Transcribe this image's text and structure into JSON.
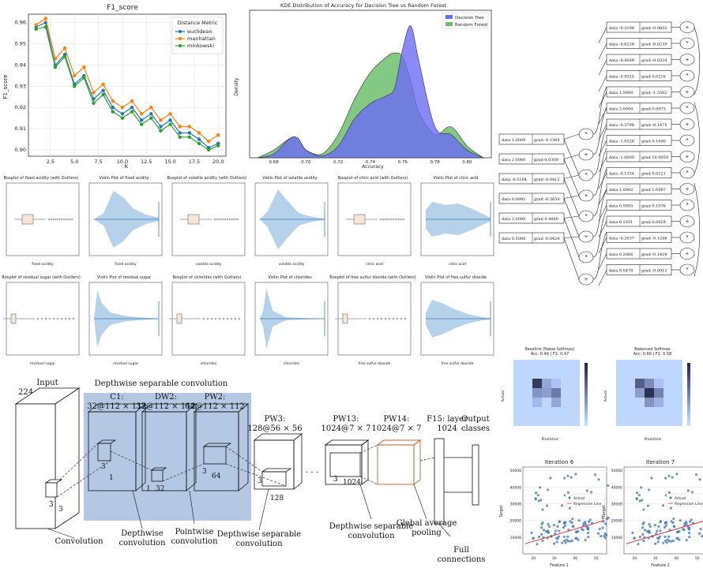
{
  "f1": {
    "title": "F1_score",
    "xlabel": "k",
    "ylabel": "F1_score",
    "legend_title": "Distance Metric",
    "series": [
      {
        "name": "euclidean",
        "color": "#1f77b4"
      },
      {
        "name": "manhattan",
        "color": "#ff7f0e"
      },
      {
        "name": "minkowski",
        "color": "#2ca02c"
      }
    ],
    "xticks": [
      "2.5",
      "5.0",
      "7.5",
      "10.0",
      "12.5",
      "15.0",
      "17.5",
      "20.0"
    ],
    "yticks": [
      "0.90",
      "0.91",
      "0.92",
      "0.93",
      "0.94",
      "0.95",
      "0.96"
    ]
  },
  "kde": {
    "title": "KDE Distribution of Accuracy for Decision Tree vs Random Forest",
    "xlabel": "Accuracy",
    "ylabel": "Density",
    "legend": [
      {
        "name": "Decision Tree",
        "color": "#6b6bf5"
      },
      {
        "name": "Random Forest",
        "color": "#6dbf6d"
      }
    ],
    "xticks": [
      "0.68",
      "0.70",
      "0.72",
      "0.74",
      "0.76",
      "0.78",
      "0.80"
    ]
  },
  "graph": {
    "nodes": [
      {
        "data": "data -0.3108",
        "grad": "grad -0.0602"
      },
      {
        "data": "data -0.6216",
        "grad": "grad -0.0239"
      },
      {
        "data": "data -0.8669",
        "grad": "grad -0.0324"
      },
      {
        "data": "data -0.9325",
        "grad": "grad 0.0216"
      },
      {
        "data": "data 1.0000",
        "grad": "grad -1.5592"
      },
      {
        "data": "data 3.0000",
        "grad": "grad 0.0075"
      },
      {
        "data": "data -0.3798",
        "grad": "grad -0.1475"
      },
      {
        "data": "data -1.0526",
        "grad": "grad 0.1690"
      },
      {
        "data": "data -1.0000",
        "grad": "grad 10.0059"
      },
      {
        "data": "data -0.1334",
        "grad": "grad 0.0121"
      },
      {
        "data": "data 1.0002",
        "grad": "grad 1.6997"
      },
      {
        "data": "data 0.0955",
        "grad": "grad 0.1076"
      },
      {
        "data": "data 0.1931",
        "grad": "grad 0.0029"
      },
      {
        "data": "data -0.2637",
        "grad": "grad -0.1246"
      },
      {
        "data": "data 0.2866",
        "grad": "grad -0.1439"
      },
      {
        "data": "data 0.0478",
        "grad": "grad -0.0912"
      }
    ],
    "inputs": [
      {
        "data": "data 1.0000",
        "grad": "grad -0.1369"
      },
      {
        "data": "data 2.0000",
        "grad": "grad 0.0309"
      },
      {
        "data": "data -0.5104",
        "grad": "grad -0.0412"
      },
      {
        "data": "data 0.0992",
        "grad": "grad -0.5659"
      },
      {
        "data": "data 3.0000",
        "grad": "grad 0.4660"
      },
      {
        "data": "data 0.5000",
        "grad": "grad -0.0424"
      }
    ]
  },
  "boxes": {
    "row1": [
      "Boxplot of fixed acidity (with Outliers)",
      "Violin Plot of fixed acidity",
      "Boxplot of volatile acidity (with Outliers)",
      "Violin Plot of volatile acidity",
      "Boxplot of citric acid (with Outliers)",
      "Violin Plot of citric acid"
    ],
    "row1_x": [
      "fixed acidity",
      "fixed acidity",
      "volatile acidity",
      "volatile acidity",
      "citric acid",
      "citric acid"
    ],
    "row2": [
      "Boxplot of residual sugar (with Outliers)",
      "Violin Plot of residual sugar",
      "Boxplot of chlorides (with Outliers)",
      "Violin Plot of chlorides",
      "Boxplot of free sulfur dioxide (with Outliers)",
      "Violin Plot of free sulfur dioxide"
    ],
    "row2_x": [
      "residual sugar",
      "residual sugar",
      "chlorides",
      "chlorides",
      "free sulfur dioxide",
      "free sulfur dioxide"
    ]
  },
  "mobilenet": {
    "input_title": "Input",
    "input_dims": "224 × 224 × 3",
    "dsc_label": "Depthwise separable convolution",
    "c1": "C1:",
    "c1_dims": "32@112 × 112",
    "dw2": "DW2:",
    "dw2_dims": "32@112 × 112",
    "pw2": "PW2:",
    "pw2_dims": "64@112 × 112",
    "pw3": "PW3:",
    "pw3_dims": "128@56 × 56",
    "pw13": "PW13:",
    "pw13_dims": "1024@7 × 7",
    "pw14": "PW14:",
    "pw14_dims": "1024@7 × 7",
    "f15": "F15: layer",
    "f15_dims": "1024",
    "output": "Output",
    "classes": "classes",
    "k3": "3",
    "k1": "1",
    "k32": "32",
    "k64": "64",
    "k128": "128",
    "k1024": "1024",
    "dots": "· · ·",
    "cap_convolution": "Convolution",
    "cap_depthwise1": "Depthwise",
    "cap_depthwise2": "convolution",
    "cap_pointwise1": "Pointwise",
    "cap_pointwise2": "convolution",
    "cap_dsc1": "Depthwise separable",
    "cap_dsc2": "convolution",
    "cap_dsc3": "Depthwise separable",
    "cap_dsc4": "convolution",
    "cap_gap1": "Global average",
    "cap_gap2": "pooling",
    "cap_full1": "Full",
    "cap_full2": "connections"
  },
  "confusion": {
    "left_title": "Baseline (Naive Softmax)",
    "left_sub": "Acc: 0.49 | F1: 0.47",
    "right_title": "Balanced Softmax",
    "right_sub": "Acc: 0.60 | F1: 0.58",
    "xlabel": "Predicted",
    "ylabel": "Actual"
  },
  "regression": {
    "left_title": "Iteration 6",
    "right_title": "Iteration 7",
    "xlabel": "Feature 1",
    "ylabel": "Target",
    "legend_actual": "Actual",
    "legend_line": "Regression Line",
    "yticks": [
      "10000",
      "20000",
      "30000",
      "40000",
      "50000"
    ],
    "xticks": [
      "20",
      "30",
      "40",
      "50"
    ]
  },
  "chart_data": [
    {
      "type": "line",
      "title": "F1_score",
      "xlabel": "k",
      "ylabel": "F1_score",
      "x": [
        1,
        2,
        3,
        4,
        5,
        6,
        7,
        8,
        9,
        10,
        11,
        12,
        13,
        14,
        15,
        16,
        17,
        18,
        19,
        20
      ],
      "ylim": [
        0.897,
        0.964
      ],
      "xlim": [
        0.2,
        20.8
      ],
      "series": [
        {
          "name": "euclidean",
          "values": [
            0.958,
            0.96,
            0.94,
            0.945,
            0.931,
            0.935,
            0.924,
            0.928,
            0.92,
            0.917,
            0.92,
            0.914,
            0.917,
            0.911,
            0.914,
            0.908,
            0.908,
            0.905,
            0.901,
            0.903
          ]
        },
        {
          "name": "manhattan",
          "values": [
            0.959,
            0.962,
            0.943,
            0.948,
            0.935,
            0.939,
            0.927,
            0.931,
            0.923,
            0.92,
            0.923,
            0.917,
            0.92,
            0.914,
            0.917,
            0.911,
            0.911,
            0.908,
            0.904,
            0.907
          ]
        },
        {
          "name": "minkowski",
          "values": [
            0.957,
            0.958,
            0.939,
            0.944,
            0.93,
            0.934,
            0.922,
            0.926,
            0.918,
            0.915,
            0.918,
            0.912,
            0.915,
            0.909,
            0.912,
            0.906,
            0.906,
            0.903,
            0.9,
            0.902
          ]
        }
      ]
    },
    {
      "type": "area",
      "title": "KDE Distribution of Accuracy for Decision Tree vs Random Forest",
      "xlabel": "Accuracy",
      "ylabel": "Density",
      "xlim": [
        0.665,
        0.815
      ],
      "ylim": [
        0,
        38
      ],
      "x": [
        0.67,
        0.68,
        0.69,
        0.695,
        0.7,
        0.71,
        0.72,
        0.73,
        0.74,
        0.75,
        0.755,
        0.76,
        0.765,
        0.77,
        0.78,
        0.79,
        0.8,
        0.81
      ],
      "series": [
        {
          "name": "Decision Tree",
          "values": [
            0,
            1,
            5,
            5,
            2,
            0.5,
            3,
            10,
            14,
            16,
            18,
            28,
            34,
            25,
            8,
            6,
            2,
            0
          ]
        },
        {
          "name": "Random Forest",
          "values": [
            0,
            2,
            5,
            5,
            2,
            1,
            6,
            15,
            22,
            26,
            27,
            26,
            20,
            12,
            6,
            8,
            3,
            0
          ]
        }
      ]
    }
  ]
}
